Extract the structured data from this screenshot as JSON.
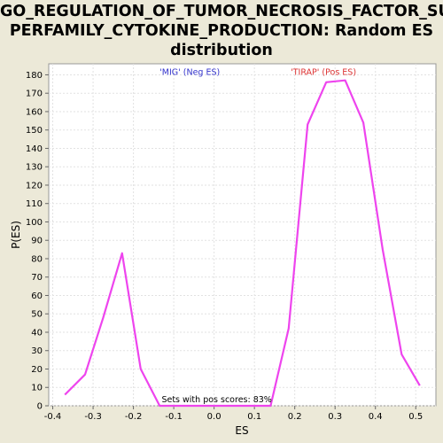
{
  "chart_data": {
    "type": "line",
    "title_lines": [
      "GO_REGULATION_OF_TUMOR_NECROSIS_FACTOR_SU",
      "PERFAMILY_CYTOKINE_PRODUCTION: Random ES",
      "distribution"
    ],
    "xlabel": "ES",
    "ylabel": "P(ES)",
    "xlim": [
      -0.41,
      0.55
    ],
    "ylim": [
      0,
      186
    ],
    "xticks": [
      -0.4,
      -0.3,
      -0.2,
      -0.1,
      0.0,
      0.1,
      0.2,
      0.3,
      0.4,
      0.5
    ],
    "xtick_labels": [
      "-0.4",
      "-0.3",
      "-0.2",
      "-0.1",
      "0.0",
      "0.1",
      "0.2",
      "0.3",
      "0.4",
      "0.5"
    ],
    "yticks": [
      0,
      10,
      20,
      30,
      40,
      50,
      60,
      70,
      80,
      90,
      100,
      110,
      120,
      130,
      140,
      150,
      160,
      170,
      180
    ],
    "grid": true,
    "line_color": "#ee44ee",
    "series": [
      {
        "x": [
          -0.37,
          -0.32,
          -0.275,
          -0.228,
          -0.182,
          -0.135,
          -0.09,
          -0.045,
          0.0,
          0.045,
          0.09,
          0.14,
          0.185,
          0.232,
          0.278,
          0.325,
          0.37,
          0.418,
          0.465,
          0.51
        ],
        "y": [
          6,
          17,
          48,
          83,
          20,
          0,
          0,
          0,
          0,
          0,
          0,
          0,
          42,
          153,
          176,
          177,
          154,
          85,
          28,
          11
        ]
      }
    ],
    "annotations": [
      {
        "text": "'MIG' (Neg ES)",
        "x": -0.135,
        "y": 180,
        "color": "#3333cc"
      },
      {
        "text": "'TIRAP' (Pos ES)",
        "x": 0.19,
        "y": 180,
        "color": "#dd3333"
      },
      {
        "text": "Sets with pos scores: 83%",
        "x": -0.13,
        "y": 2,
        "color": "#000000"
      }
    ]
  }
}
